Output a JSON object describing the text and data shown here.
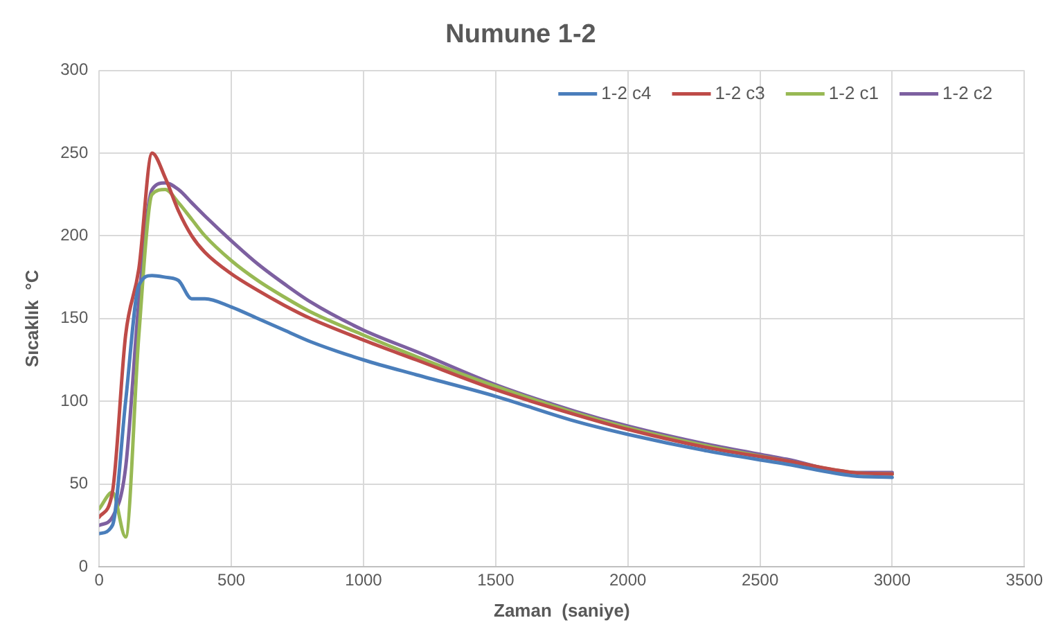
{
  "chart_data": {
    "type": "line",
    "title": "Numune 1-2",
    "xlabel": "Zaman  (saniye)",
    "ylabel": "Sıcaklık  °C",
    "x": [
      0,
      50,
      100,
      150,
      200,
      250,
      300,
      350,
      400,
      500,
      600,
      700,
      800,
      1000,
      1200,
      1500,
      1800,
      2000,
      2300,
      2600,
      2850,
      3000
    ],
    "series": [
      {
        "name": "1-2 c4",
        "color": "#4a7ebb",
        "values": [
          20,
          25,
          100,
          170,
          176,
          175,
          173,
          162,
          162,
          157,
          150,
          143,
          136,
          125,
          116,
          103,
          88,
          80,
          70,
          62,
          55,
          54
        ]
      },
      {
        "name": "1-2 c3",
        "color": "#be4b48",
        "values": [
          30,
          45,
          140,
          180,
          250,
          235,
          215,
          200,
          190,
          177,
          167,
          158,
          150,
          137,
          125,
          107,
          92,
          83,
          72,
          64,
          57,
          56
        ]
      },
      {
        "name": "1-2 c1",
        "color": "#98b954",
        "values": [
          35,
          45,
          18,
          140,
          225,
          228,
          220,
          210,
          200,
          185,
          173,
          163,
          154,
          140,
          127,
          109,
          93,
          84,
          73,
          64,
          57,
          56
        ]
      },
      {
        "name": "1-2 c2",
        "color": "#7d60a0",
        "values": [
          25,
          30,
          60,
          160,
          228,
          232,
          228,
          220,
          212,
          197,
          183,
          171,
          160,
          143,
          130,
          110,
          94,
          85,
          74,
          65,
          57,
          57
        ]
      }
    ],
    "xlim": [
      0,
      3500
    ],
    "xticks": [
      0,
      500,
      1000,
      1500,
      2000,
      2500,
      3000,
      3500
    ],
    "ylim": [
      0,
      300
    ],
    "yticks": [
      0,
      50,
      100,
      150,
      200,
      250,
      300
    ],
    "grid": true,
    "legend": "top right",
    "marker": "none",
    "line_style": "solid"
  }
}
